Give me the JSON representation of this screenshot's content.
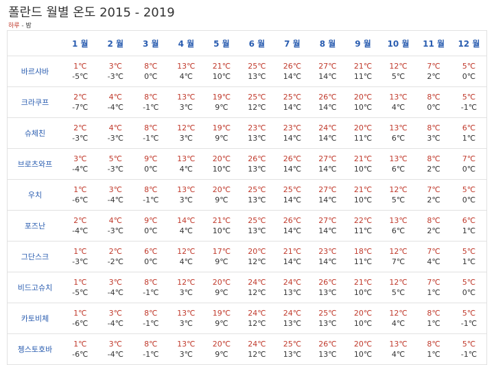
{
  "title": "폴란드 월별 온도 2015 - 2019",
  "legend": {
    "day": "하루",
    "sep": " - ",
    "night": "밤"
  },
  "months": [
    "1 월",
    "2 월",
    "3 월",
    "4 월",
    "5 월",
    "6 월",
    "7 월",
    "8 월",
    "9 월",
    "10 월",
    "11 월",
    "12 월"
  ],
  "rows": [
    {
      "city": "바르샤바",
      "cells": [
        [
          "1℃",
          "-5℃"
        ],
        [
          "3℃",
          "-3℃"
        ],
        [
          "8℃",
          "0℃"
        ],
        [
          "13℃",
          "4℃"
        ],
        [
          "21℃",
          "10℃"
        ],
        [
          "25℃",
          "13℃"
        ],
        [
          "26℃",
          "14℃"
        ],
        [
          "27℃",
          "14℃"
        ],
        [
          "21℃",
          "11℃"
        ],
        [
          "12℃",
          "5℃"
        ],
        [
          "7℃",
          "2℃"
        ],
        [
          "5℃",
          "0℃"
        ]
      ]
    },
    {
      "city": "크라쿠프",
      "cells": [
        [
          "2℃",
          "-7℃"
        ],
        [
          "4℃",
          "-4℃"
        ],
        [
          "8℃",
          "-1℃"
        ],
        [
          "13℃",
          "3℃"
        ],
        [
          "19℃",
          "9℃"
        ],
        [
          "25℃",
          "12℃"
        ],
        [
          "25℃",
          "14℃"
        ],
        [
          "26℃",
          "14℃"
        ],
        [
          "20℃",
          "10℃"
        ],
        [
          "13℃",
          "4℃"
        ],
        [
          "8℃",
          "0℃"
        ],
        [
          "5℃",
          "-1℃"
        ]
      ]
    },
    {
      "city": "슈체친",
      "cells": [
        [
          "2℃",
          "-3℃"
        ],
        [
          "4℃",
          "-3℃"
        ],
        [
          "8℃",
          "-1℃"
        ],
        [
          "12℃",
          "3℃"
        ],
        [
          "19℃",
          "9℃"
        ],
        [
          "23℃",
          "13℃"
        ],
        [
          "23℃",
          "14℃"
        ],
        [
          "24℃",
          "14℃"
        ],
        [
          "20℃",
          "11℃"
        ],
        [
          "13℃",
          "6℃"
        ],
        [
          "8℃",
          "3℃"
        ],
        [
          "6℃",
          "1℃"
        ]
      ]
    },
    {
      "city": "브로츠와프",
      "cells": [
        [
          "3℃",
          "-4℃"
        ],
        [
          "5℃",
          "-3℃"
        ],
        [
          "9℃",
          "0℃"
        ],
        [
          "13℃",
          "4℃"
        ],
        [
          "20℃",
          "10℃"
        ],
        [
          "26℃",
          "13℃"
        ],
        [
          "26℃",
          "14℃"
        ],
        [
          "27℃",
          "14℃"
        ],
        [
          "21℃",
          "10℃"
        ],
        [
          "13℃",
          "6℃"
        ],
        [
          "8℃",
          "2℃"
        ],
        [
          "7℃",
          "0℃"
        ]
      ]
    },
    {
      "city": "우치",
      "cells": [
        [
          "1℃",
          "-6℃"
        ],
        [
          "3℃",
          "-4℃"
        ],
        [
          "8℃",
          "-1℃"
        ],
        [
          "13℃",
          "3℃"
        ],
        [
          "20℃",
          "9℃"
        ],
        [
          "25℃",
          "13℃"
        ],
        [
          "25℃",
          "14℃"
        ],
        [
          "27℃",
          "14℃"
        ],
        [
          "21℃",
          "10℃"
        ],
        [
          "12℃",
          "5℃"
        ],
        [
          "7℃",
          "2℃"
        ],
        [
          "5℃",
          "0℃"
        ]
      ]
    },
    {
      "city": "포즈난",
      "cells": [
        [
          "2℃",
          "-4℃"
        ],
        [
          "4℃",
          "-3℃"
        ],
        [
          "9℃",
          "0℃"
        ],
        [
          "14℃",
          "4℃"
        ],
        [
          "21℃",
          "10℃"
        ],
        [
          "25℃",
          "13℃"
        ],
        [
          "26℃",
          "14℃"
        ],
        [
          "27℃",
          "14℃"
        ],
        [
          "22℃",
          "11℃"
        ],
        [
          "13℃",
          "6℃"
        ],
        [
          "8℃",
          "2℃"
        ],
        [
          "6℃",
          "1℃"
        ]
      ]
    },
    {
      "city": "그단스크",
      "cells": [
        [
          "1℃",
          "-3℃"
        ],
        [
          "2℃",
          "-2℃"
        ],
        [
          "6℃",
          "0℃"
        ],
        [
          "12℃",
          "4℃"
        ],
        [
          "17℃",
          "9℃"
        ],
        [
          "20℃",
          "12℃"
        ],
        [
          "21℃",
          "14℃"
        ],
        [
          "23℃",
          "14℃"
        ],
        [
          "18℃",
          "11℃"
        ],
        [
          "12℃",
          "7℃"
        ],
        [
          "7℃",
          "4℃"
        ],
        [
          "5℃",
          "1℃"
        ]
      ]
    },
    {
      "city": "비드고슈치",
      "cells": [
        [
          "1℃",
          "-5℃"
        ],
        [
          "3℃",
          "-4℃"
        ],
        [
          "8℃",
          "-1℃"
        ],
        [
          "12℃",
          "3℃"
        ],
        [
          "20℃",
          "9℃"
        ],
        [
          "24℃",
          "12℃"
        ],
        [
          "24℃",
          "13℃"
        ],
        [
          "26℃",
          "13℃"
        ],
        [
          "21℃",
          "10℃"
        ],
        [
          "12℃",
          "5℃"
        ],
        [
          "7℃",
          "1℃"
        ],
        [
          "5℃",
          "0℃"
        ]
      ]
    },
    {
      "city": "카토비체",
      "cells": [
        [
          "1℃",
          "-6℃"
        ],
        [
          "3℃",
          "-4℃"
        ],
        [
          "8℃",
          "-1℃"
        ],
        [
          "13℃",
          "3℃"
        ],
        [
          "19℃",
          "9℃"
        ],
        [
          "24℃",
          "12℃"
        ],
        [
          "24℃",
          "13℃"
        ],
        [
          "25℃",
          "13℃"
        ],
        [
          "20℃",
          "10℃"
        ],
        [
          "12℃",
          "4℃"
        ],
        [
          "8℃",
          "1℃"
        ],
        [
          "5℃",
          "-1℃"
        ]
      ]
    },
    {
      "city": "쳉스토호바",
      "cells": [
        [
          "1℃",
          "-6℃"
        ],
        [
          "3℃",
          "-4℃"
        ],
        [
          "8℃",
          "-1℃"
        ],
        [
          "13℃",
          "3℃"
        ],
        [
          "20℃",
          "9℃"
        ],
        [
          "24℃",
          "12℃"
        ],
        [
          "25℃",
          "13℃"
        ],
        [
          "26℃",
          "13℃"
        ],
        [
          "20℃",
          "10℃"
        ],
        [
          "13℃",
          "4℃"
        ],
        [
          "8℃",
          "1℃"
        ],
        [
          "5℃",
          "-1℃"
        ]
      ]
    }
  ]
}
